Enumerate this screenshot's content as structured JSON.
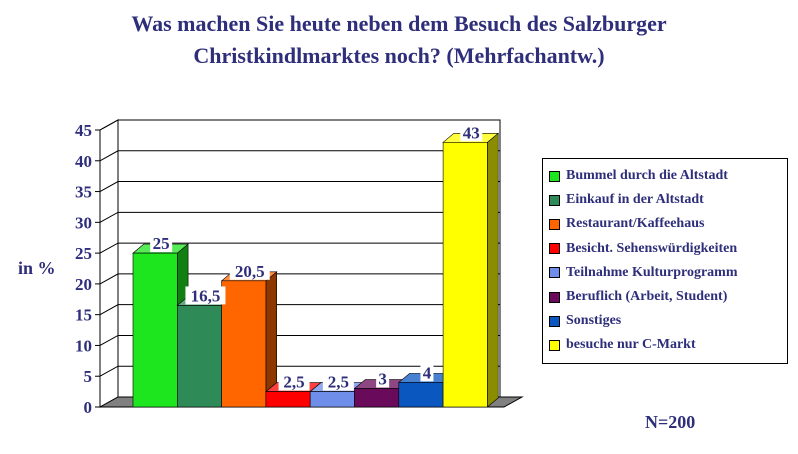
{
  "chart_data": {
    "type": "bar",
    "title": "Was machen Sie heute neben dem Besuch des Salzburger Christkindlmarktes noch? (Mehrfachantw.)",
    "title_lines": [
      "Was machen Sie heute neben dem Besuch des Salzburger",
      "Christkindlmarktes noch? (Mehrfachantw.)"
    ],
    "ylabel": "in %",
    "ylim": [
      0,
      45
    ],
    "yticks": [
      0,
      5,
      10,
      15,
      20,
      25,
      30,
      35,
      40,
      45
    ],
    "grid": true,
    "legend_position": "right",
    "note": "N=200",
    "series": [
      {
        "name": "Bummel durch die Altstadt",
        "value": 25,
        "label": "25",
        "color": "#1ee61e"
      },
      {
        "name": "Einkauf in der Altstadt",
        "value": 16.5,
        "label": "16,5",
        "color": "#2e8b57"
      },
      {
        "name": "Restaurant/Kaffeehaus",
        "value": 20.5,
        "label": "20,5",
        "color": "#ff6600"
      },
      {
        "name": "Besicht. Sehenswürdigkeiten",
        "value": 2.5,
        "label": "2,5",
        "color": "#ff0000"
      },
      {
        "name": "Teilnahme Kulturprogramm",
        "value": 2.5,
        "label": "2,5",
        "color": "#6e8eea"
      },
      {
        "name": "Beruflich (Arbeit, Student)",
        "value": 3,
        "label": "3",
        "color": "#6a0a5a"
      },
      {
        "name": "Sonstiges",
        "value": 4,
        "label": "4",
        "color": "#0b57c0"
      },
      {
        "name": "besuche nur C-Markt",
        "value": 43,
        "label": "43",
        "color": "#ffff00"
      }
    ]
  }
}
